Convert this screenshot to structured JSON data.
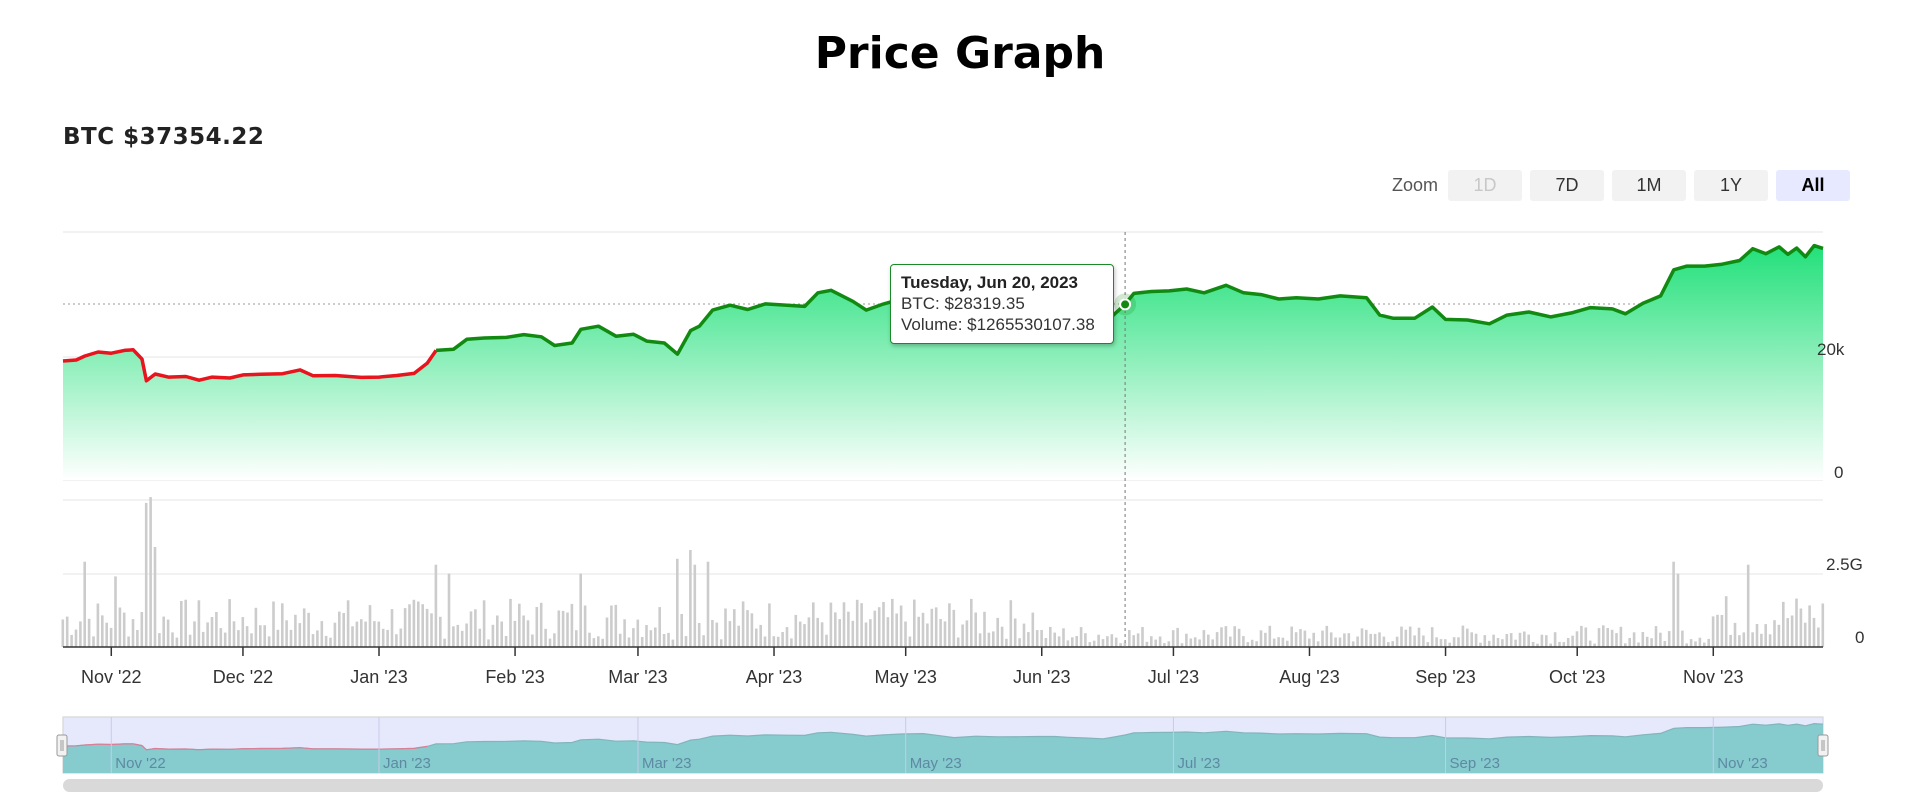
{
  "page": {
    "title": "Price Graph",
    "ticker": "BTC $37354.22"
  },
  "zoom": {
    "label": "Zoom",
    "buttons": [
      {
        "label": "1D",
        "state": "disabled"
      },
      {
        "label": "7D",
        "state": "normal"
      },
      {
        "label": "1M",
        "state": "normal"
      },
      {
        "label": "1Y",
        "state": "normal"
      },
      {
        "label": "All",
        "state": "active"
      }
    ]
  },
  "tooltip": {
    "date": "Tuesday, Jun 20, 2023",
    "price": "BTC: $28319.35",
    "volume": "Volume: $1265530107.38"
  },
  "colors": {
    "up_line": "#128a12",
    "down_line": "#e8141e",
    "area_top": "#22e07a",
    "area_bottom": "#ffffff",
    "volume_bar": "#cccccc",
    "navigator_mask": "#d2d6fa",
    "navigator_area": "#2bbf9a",
    "tooltip_border": "#1a8a28"
  },
  "chart_data": {
    "type": "area",
    "title": "Price Graph",
    "x_range": [
      "2022-10-21",
      "2023-11-26"
    ],
    "x_ticks": [
      "Nov '22",
      "Dec '22",
      "Jan '23",
      "Feb '23",
      "Mar '23",
      "Apr '23",
      "May '23",
      "Jun '23",
      "Jul '23",
      "Aug '23",
      "Sep '23",
      "Oct '23",
      "Nov '23"
    ],
    "navigator_ticks": [
      "Nov '22",
      "Jan '23",
      "Mar '23",
      "May '23",
      "Jul '23",
      "Sep '23",
      "Nov '23"
    ],
    "price_axis": {
      "ticks": [
        "20k",
        "0"
      ],
      "ylim": [
        0,
        40000
      ]
    },
    "volume_axis": {
      "ticks": [
        "2.5G",
        "0"
      ],
      "ylim": [
        0,
        5000000000
      ]
    },
    "price_series": {
      "name": "BTC",
      "points": [
        [
          "2022-10-21",
          19200
        ],
        [
          "2022-10-24",
          19350
        ],
        [
          "2022-10-26",
          20000
        ],
        [
          "2022-10-29",
          20650
        ],
        [
          "2022-11-01",
          20450
        ],
        [
          "2022-11-04",
          20900
        ],
        [
          "2022-11-06",
          21000
        ],
        [
          "2022-11-08",
          19500
        ],
        [
          "2022-11-09",
          16000
        ],
        [
          "2022-11-11",
          17100
        ],
        [
          "2022-11-14",
          16600
        ],
        [
          "2022-11-18",
          16700
        ],
        [
          "2022-11-21",
          16100
        ],
        [
          "2022-11-24",
          16600
        ],
        [
          "2022-11-28",
          16450
        ],
        [
          "2022-12-01",
          16950
        ],
        [
          "2022-12-05",
          17050
        ],
        [
          "2022-12-10",
          17150
        ],
        [
          "2022-12-14",
          17750
        ],
        [
          "2022-12-17",
          16800
        ],
        [
          "2022-12-22",
          16850
        ],
        [
          "2022-12-28",
          16550
        ],
        [
          "2023-01-01",
          16600
        ],
        [
          "2023-01-05",
          16850
        ],
        [
          "2023-01-09",
          17200
        ],
        [
          "2023-01-12",
          18850
        ],
        [
          "2023-01-14",
          20900
        ],
        [
          "2023-01-18",
          21100
        ],
        [
          "2023-01-21",
          22700
        ],
        [
          "2023-01-25",
          22900
        ],
        [
          "2023-01-30",
          23000
        ],
        [
          "2023-02-03",
          23450
        ],
        [
          "2023-02-07",
          23100
        ],
        [
          "2023-02-10",
          21700
        ],
        [
          "2023-02-14",
          22100
        ],
        [
          "2023-02-16",
          24300
        ],
        [
          "2023-02-20",
          24800
        ],
        [
          "2023-02-24",
          23200
        ],
        [
          "2023-02-28",
          23500
        ],
        [
          "2023-03-03",
          22400
        ],
        [
          "2023-03-07",
          22100
        ],
        [
          "2023-03-10",
          20300
        ],
        [
          "2023-03-13",
          24100
        ],
        [
          "2023-03-15",
          24800
        ],
        [
          "2023-03-18",
          27400
        ],
        [
          "2023-03-22",
          28200
        ],
        [
          "2023-03-26",
          27500
        ],
        [
          "2023-03-30",
          28400
        ],
        [
          "2023-04-04",
          28200
        ],
        [
          "2023-04-08",
          28000
        ],
        [
          "2023-04-11",
          30200
        ],
        [
          "2023-04-14",
          30600
        ],
        [
          "2023-04-19",
          28800
        ],
        [
          "2023-04-22",
          27400
        ],
        [
          "2023-04-26",
          28400
        ],
        [
          "2023-04-30",
          29200
        ],
        [
          "2023-05-05",
          29500
        ],
        [
          "2023-05-09",
          27700
        ],
        [
          "2023-05-12",
          26200
        ],
        [
          "2023-05-17",
          27300
        ],
        [
          "2023-05-22",
          26800
        ],
        [
          "2023-05-27",
          26900
        ],
        [
          "2023-05-31",
          27100
        ],
        [
          "2023-06-04",
          27100
        ],
        [
          "2023-06-07",
          26400
        ],
        [
          "2023-06-11",
          25800
        ],
        [
          "2023-06-15",
          25200
        ],
        [
          "2023-06-17",
          26400
        ],
        [
          "2023-06-20",
          28319.35
        ],
        [
          "2023-06-22",
          30100
        ],
        [
          "2023-06-26",
          30400
        ],
        [
          "2023-06-30",
          30500
        ],
        [
          "2023-07-04",
          30800
        ],
        [
          "2023-07-08",
          30200
        ],
        [
          "2023-07-13",
          31400
        ],
        [
          "2023-07-17",
          30200
        ],
        [
          "2023-07-21",
          29900
        ],
        [
          "2023-07-25",
          29200
        ],
        [
          "2023-07-29",
          29400
        ],
        [
          "2023-08-03",
          29200
        ],
        [
          "2023-08-08",
          29700
        ],
        [
          "2023-08-14",
          29400
        ],
        [
          "2023-08-17",
          26600
        ],
        [
          "2023-08-20",
          26100
        ],
        [
          "2023-08-25",
          26100
        ],
        [
          "2023-08-29",
          27900
        ],
        [
          "2023-09-01",
          25900
        ],
        [
          "2023-09-06",
          25800
        ],
        [
          "2023-09-11",
          25200
        ],
        [
          "2023-09-15",
          26600
        ],
        [
          "2023-09-20",
          27100
        ],
        [
          "2023-09-25",
          26300
        ],
        [
          "2023-09-30",
          27000
        ],
        [
          "2023-10-04",
          27800
        ],
        [
          "2023-10-09",
          27600
        ],
        [
          "2023-10-12",
          26800
        ],
        [
          "2023-10-16",
          28500
        ],
        [
          "2023-10-20",
          29700
        ],
        [
          "2023-10-23",
          33900
        ],
        [
          "2023-10-26",
          34500
        ],
        [
          "2023-10-30",
          34500
        ],
        [
          "2023-11-03",
          34800
        ],
        [
          "2023-11-07",
          35400
        ],
        [
          "2023-11-10",
          37300
        ],
        [
          "2023-11-13",
          36500
        ],
        [
          "2023-11-16",
          37600
        ],
        [
          "2023-11-18",
          36400
        ],
        [
          "2023-11-20",
          37400
        ],
        [
          "2023-11-22",
          36000
        ],
        [
          "2023-11-24",
          37800
        ],
        [
          "2023-11-26",
          37354.22
        ]
      ]
    },
    "volume_series": {
      "name": "Volume",
      "base_level": 1000000000,
      "spikes": [
        [
          "2022-10-26",
          2900000000
        ],
        [
          "2022-11-02",
          2400000000
        ],
        [
          "2022-11-09",
          4900000000
        ],
        [
          "2022-11-10",
          5100000000
        ],
        [
          "2022-11-11",
          3400000000
        ],
        [
          "2023-01-14",
          2800000000
        ],
        [
          "2023-01-17",
          2500000000
        ],
        [
          "2023-02-16",
          2500000000
        ],
        [
          "2023-03-10",
          3000000000
        ],
        [
          "2023-03-13",
          3300000000
        ],
        [
          "2023-03-14",
          2800000000
        ],
        [
          "2023-03-17",
          2900000000
        ],
        [
          "2023-10-23",
          2900000000
        ],
        [
          "2023-10-24",
          2500000000
        ],
        [
          "2023-11-09",
          2800000000
        ]
      ]
    },
    "hover": {
      "date": "2023-06-20",
      "price": 28319.35,
      "volume": 1265530107.38
    },
    "legend": "none",
    "grid": true
  }
}
